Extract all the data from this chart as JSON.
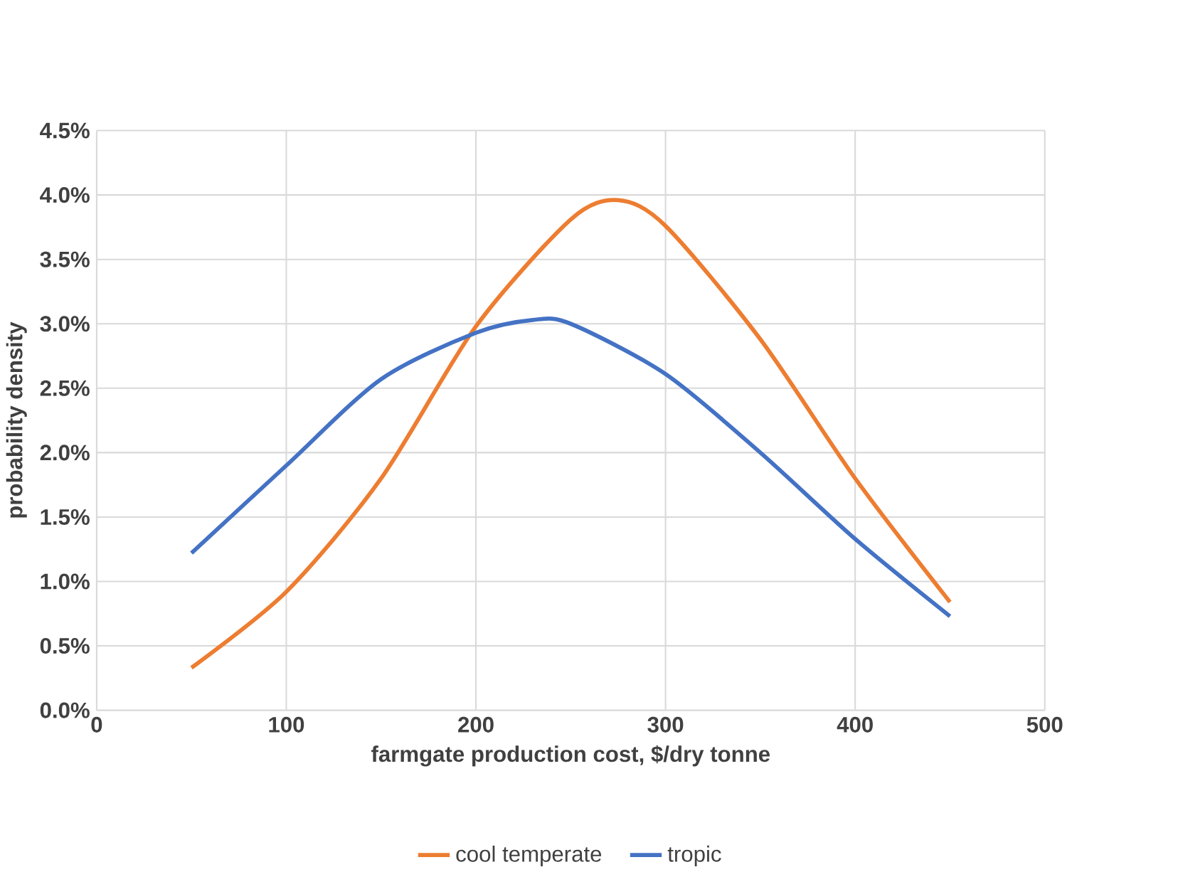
{
  "chart_data": {
    "type": "line",
    "xlabel": "farmgate production cost, $/dry tonne",
    "ylabel": "probability density",
    "x": [
      50,
      100,
      150,
      200,
      250,
      275,
      300,
      350,
      400,
      450
    ],
    "series": [
      {
        "name": "cool temperate",
        "color": "#ed7d31",
        "values": [
          0.33,
          0.92,
          1.8,
          2.98,
          3.81,
          3.96,
          3.76,
          2.88,
          1.8,
          0.84
        ]
      },
      {
        "name": "tropic",
        "color": "#4472c4",
        "x": [
          50,
          100,
          150,
          200,
          230,
          250,
          300,
          350,
          400,
          450
        ],
        "values": [
          1.22,
          1.9,
          2.57,
          2.93,
          3.03,
          3.0,
          2.61,
          2.0,
          1.33,
          0.73
        ]
      }
    ],
    "xlim": [
      0,
      500
    ],
    "xticks": [
      0,
      100,
      200,
      300,
      400,
      500
    ],
    "ylim": [
      0,
      4.5
    ],
    "yticks": [
      {
        "value": 0,
        "label": "0.0%"
      },
      {
        "value": 0.5,
        "label": "0.5%"
      },
      {
        "value": 1,
        "label": "1.0%"
      },
      {
        "value": 1.5,
        "label": "1.5%"
      },
      {
        "value": 2,
        "label": "2.0%"
      },
      {
        "value": 2.5,
        "label": "2.5%"
      },
      {
        "value": 3,
        "label": "3.0%"
      },
      {
        "value": 3.5,
        "label": "3.5%"
      },
      {
        "value": 4,
        "label": "4.0%"
      },
      {
        "value": 4.5,
        "label": "4.5%"
      }
    ],
    "grid": true,
    "legend": "bottom",
    "marker": "none",
    "line_style": "solid"
  }
}
